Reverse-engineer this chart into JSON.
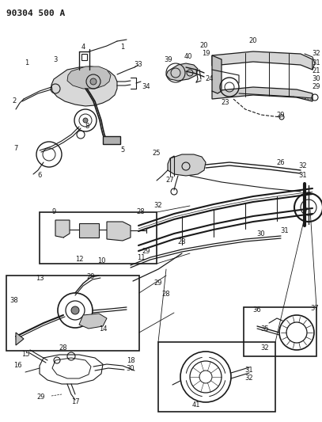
{
  "title": "90304 500 A",
  "bg_color": "#ffffff",
  "line_color": "#1a1a1a",
  "title_fontsize": 8,
  "fig_width": 4.07,
  "fig_height": 5.33,
  "dpi": 100
}
